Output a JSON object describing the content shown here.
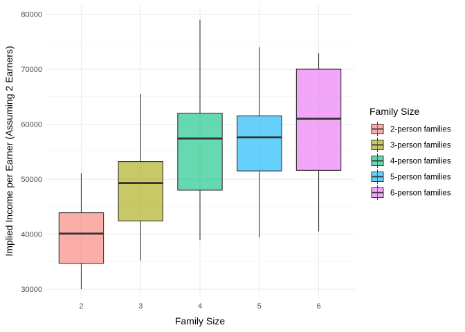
{
  "chart_data": {
    "type": "box",
    "xlabel": "Family Size",
    "ylabel": "Implied Income per Earner (Assuming 2 Earners)",
    "ylim": [
      28500,
      81700
    ],
    "yticks": [
      30000,
      40000,
      50000,
      60000,
      70000,
      80000
    ],
    "grid": true,
    "legend": {
      "title": "Family Size",
      "position": "right"
    },
    "categories": [
      "2",
      "3",
      "4",
      "5",
      "6"
    ],
    "series": [
      {
        "name": "2-person families",
        "color": "#F8766D",
        "min": 30000,
        "q1": 34700,
        "median": 40100,
        "q3": 43900,
        "max": 51100
      },
      {
        "name": "3-person families",
        "color": "#A3A500",
        "min": 35200,
        "q1": 42400,
        "median": 49300,
        "q3": 53200,
        "max": 65500
      },
      {
        "name": "4-person families",
        "color": "#00BF7D",
        "min": 38900,
        "q1": 48000,
        "median": 57400,
        "q3": 62000,
        "max": 79000
      },
      {
        "name": "5-person families",
        "color": "#00B0F6",
        "min": 39400,
        "q1": 51500,
        "median": 57600,
        "q3": 61500,
        "max": 74000
      },
      {
        "name": "6-person families",
        "color": "#E76BF3",
        "min": 40500,
        "q1": 51600,
        "median": 61000,
        "q3": 70000,
        "max": 72900
      }
    ]
  }
}
